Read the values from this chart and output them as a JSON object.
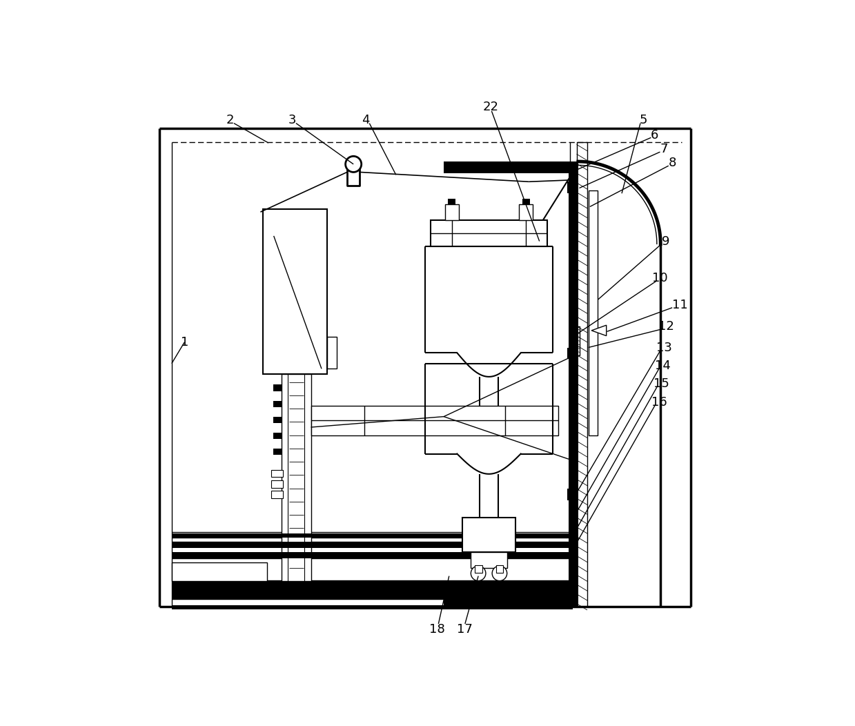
{
  "fig_width": 12.39,
  "fig_height": 10.52,
  "bg_color": "#ffffff",
  "lc": "#000000"
}
